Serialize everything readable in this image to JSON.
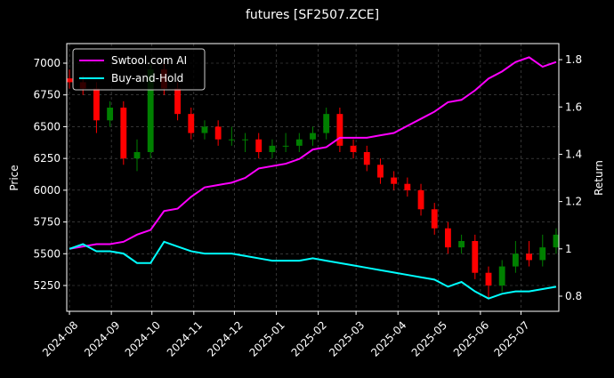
{
  "chart_data": {
    "type": "candlestick",
    "title": "futures [SF2507.ZCE]",
    "ylabel": "Price",
    "y2label": "Return",
    "x": [
      0,
      10,
      20,
      30,
      40,
      50,
      60,
      70,
      80,
      90,
      100,
      110,
      120,
      130,
      140,
      150,
      160,
      170,
      180,
      190,
      200,
      210,
      220,
      230,
      240,
      250,
      260,
      270,
      280,
      290,
      300,
      310,
      320,
      330,
      340,
      350,
      360
    ],
    "open": [
      6880,
      6850,
      6800,
      6550,
      6650,
      6250,
      6300,
      6950,
      6800,
      6600,
      6450,
      6500,
      6400,
      6400,
      6400,
      6300,
      6350,
      6350,
      6400,
      6450,
      6600,
      6350,
      6300,
      6200,
      6100,
      6050,
      6000,
      5850,
      5700,
      5550,
      5600,
      5350,
      5250,
      5400,
      5500,
      5450,
      5550
    ],
    "high": [
      6950,
      6900,
      6850,
      6700,
      6700,
      6400,
      7000,
      7000,
      6850,
      6650,
      6550,
      6550,
      6500,
      6450,
      6450,
      6400,
      6450,
      6450,
      6500,
      6650,
      6650,
      6400,
      6350,
      6250,
      6150,
      6100,
      6050,
      5900,
      5750,
      5650,
      5650,
      5400,
      5450,
      5600,
      5600,
      5650,
      5700
    ],
    "low": [
      6800,
      6750,
      6450,
      6500,
      6200,
      6150,
      6250,
      6750,
      6550,
      6400,
      6400,
      6350,
      6350,
      6300,
      6250,
      6250,
      6300,
      6300,
      6350,
      6400,
      6300,
      6250,
      6150,
      6050,
      6000,
      5950,
      5800,
      5650,
      5500,
      5500,
      5300,
      5150,
      5200,
      5350,
      5400,
      5400,
      5500
    ],
    "close": [
      6850,
      6800,
      6550,
      6650,
      6250,
      6300,
      6950,
      6800,
      6600,
      6450,
      6500,
      6400,
      6400,
      6400,
      6300,
      6350,
      6350,
      6400,
      6450,
      6600,
      6350,
      6300,
      6200,
      6100,
      6050,
      6000,
      5850,
      5700,
      5550,
      5600,
      5350,
      5250,
      5400,
      5500,
      5450,
      5550,
      5650
    ],
    "up_color": "#008000",
    "down_color": "#ff0000",
    "series": [
      {
        "name": "Swtool.com AI",
        "color": "#ff00ff",
        "axis": "y2",
        "values": [
          1.0,
          1.01,
          1.02,
          1.02,
          1.03,
          1.06,
          1.08,
          1.16,
          1.17,
          1.22,
          1.26,
          1.27,
          1.28,
          1.3,
          1.34,
          1.35,
          1.36,
          1.38,
          1.42,
          1.43,
          1.47,
          1.47,
          1.47,
          1.48,
          1.49,
          1.52,
          1.55,
          1.58,
          1.62,
          1.63,
          1.67,
          1.72,
          1.75,
          1.79,
          1.81,
          1.77,
          1.79
        ]
      },
      {
        "name": "Buy-and-Hold",
        "color": "#00ffff",
        "axis": "y2",
        "values": [
          1.0,
          1.02,
          0.99,
          0.99,
          0.98,
          0.94,
          0.94,
          1.03,
          1.01,
          0.99,
          0.98,
          0.98,
          0.98,
          0.97,
          0.96,
          0.95,
          0.95,
          0.95,
          0.96,
          0.95,
          0.94,
          0.93,
          0.92,
          0.91,
          0.9,
          0.89,
          0.88,
          0.87,
          0.84,
          0.86,
          0.82,
          0.79,
          0.81,
          0.82,
          0.82,
          0.83,
          0.84
        ]
      }
    ],
    "xlim": [
      -2,
      362
    ],
    "xticks": [
      {
        "value": 0,
        "label": "2024-08"
      },
      {
        "value": 31,
        "label": "2024-09"
      },
      {
        "value": 61,
        "label": "2024-10"
      },
      {
        "value": 92,
        "label": "2024-11"
      },
      {
        "value": 122,
        "label": "2024-12"
      },
      {
        "value": 153,
        "label": "2025-01"
      },
      {
        "value": 184,
        "label": "2025-02"
      },
      {
        "value": 212,
        "label": "2025-03"
      },
      {
        "value": 243,
        "label": "2025-04"
      },
      {
        "value": 273,
        "label": "2025-05"
      },
      {
        "value": 304,
        "label": "2025-06"
      },
      {
        "value": 334,
        "label": "2025-07"
      }
    ],
    "ylim": [
      5047,
      7154
    ],
    "yticks": [
      5250,
      5500,
      5750,
      6000,
      6250,
      6500,
      6750,
      7000
    ],
    "y2lim": [
      0.736,
      1.868
    ],
    "y2ticks": [
      0.8,
      1.0,
      1.2,
      1.4,
      1.6,
      1.8
    ],
    "grid": true,
    "legend": "upper left"
  }
}
